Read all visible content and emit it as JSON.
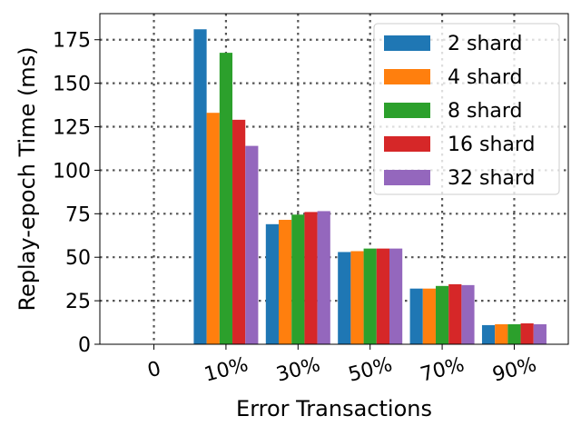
{
  "chart_data": {
    "type": "bar",
    "xlabel": "Error Transactions",
    "ylabel": "Replay-epoch Time (ms)",
    "categories": [
      "0",
      "10%",
      "30%",
      "50%",
      "70%",
      "90%"
    ],
    "ylim": [
      0,
      190
    ],
    "yticks": [
      0,
      25,
      50,
      75,
      100,
      125,
      150,
      175
    ],
    "grid": true,
    "legend_position": "top-right",
    "series": [
      {
        "name": "2 shard",
        "color": "#1f77b4",
        "values": [
          0,
          181,
          69,
          53,
          32,
          11
        ]
      },
      {
        "name": "4 shard",
        "color": "#ff7f0e",
        "values": [
          0,
          133,
          71.5,
          53.5,
          32,
          11.5
        ]
      },
      {
        "name": "8 shard",
        "color": "#2ca02c",
        "values": [
          0,
          167.5,
          74.5,
          55,
          33.5,
          11.5
        ]
      },
      {
        "name": "16 shard",
        "color": "#d62728",
        "values": [
          0,
          129,
          76,
          55,
          34.5,
          12
        ]
      },
      {
        "name": "32 shard",
        "color": "#9467bd",
        "values": [
          0,
          114,
          76.5,
          55,
          34,
          11.5
        ]
      }
    ]
  }
}
